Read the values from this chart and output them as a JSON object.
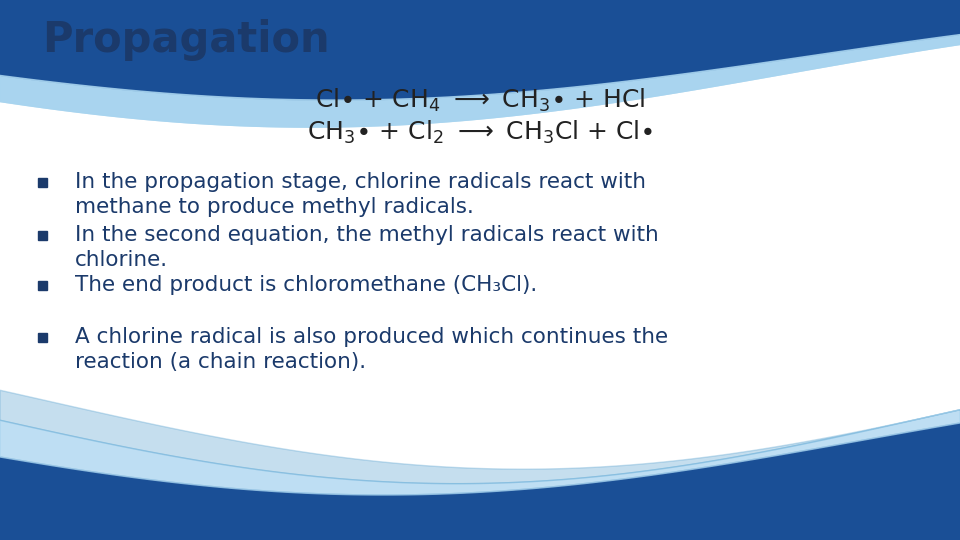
{
  "title": "Propagation",
  "title_color": "#1b3a6b",
  "title_fontsize": 30,
  "eq_color": "#222222",
  "eq_fontsize": 18,
  "bullets": [
    [
      "In the propagation stage, chlorine radicals react with",
      "methane to produce methyl radicals."
    ],
    [
      "In the second equation, the methyl radicals react with",
      "chlorine."
    ],
    [
      "The end product is chloromethane (CH₃Cl)."
    ],
    [
      "A chlorine radical is also produced which continues the",
      "reaction (a chain reaction)."
    ]
  ],
  "bullet_color": "#1b3a6b",
  "bullet_fontsize": 15.5,
  "bg_color": "#ffffff",
  "dark_blue": "#1a4f96",
  "light_blue": "#a8d4ef",
  "mid_blue": "#5ba3d0"
}
